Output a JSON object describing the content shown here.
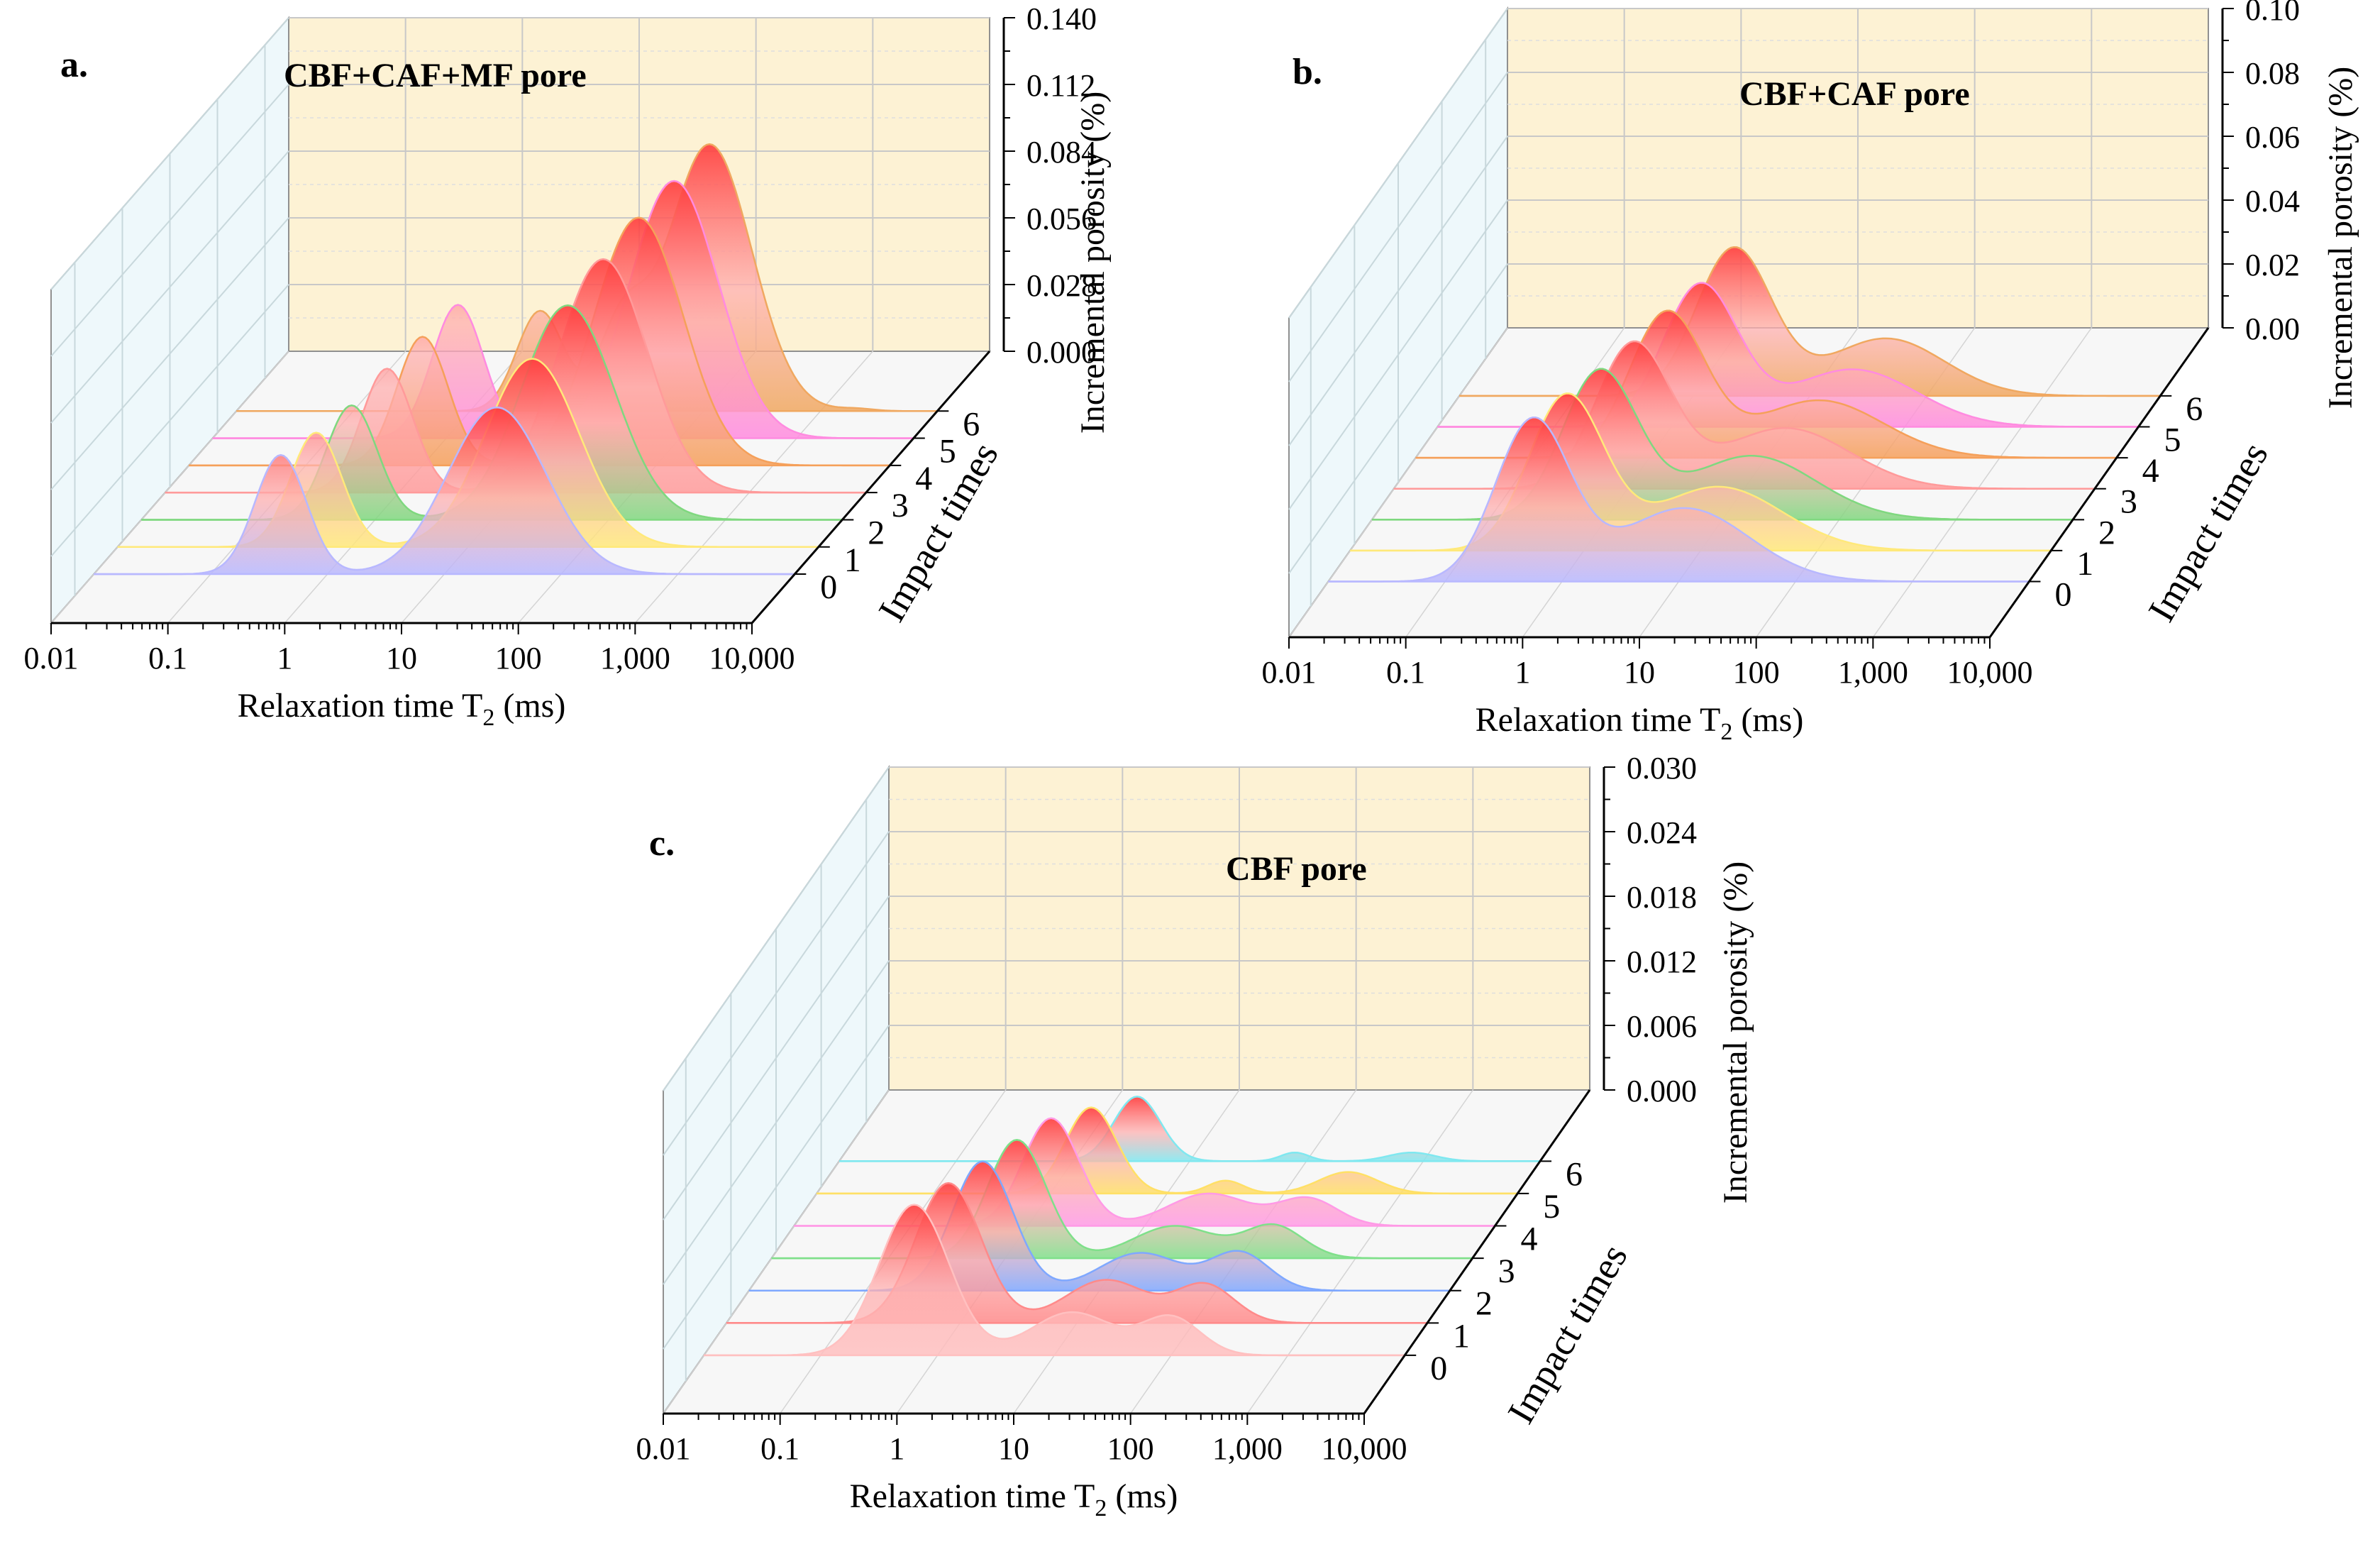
{
  "chart_data": [
    {
      "panel_label": "a.",
      "type": "area",
      "inset_title": "CBF+CAF+MF pore",
      "xlabel": "Relaxation time T",
      "xlabel_sub": "2",
      "xlabel_unit": " (ms)",
      "ylabel": "Incremental porosity (%)",
      "zlabel": "Impact times",
      "x_scale": "log",
      "xlim": [
        0.01,
        10000
      ],
      "x_ticks": [
        "0.01",
        "0.1",
        "1",
        "10",
        "100",
        "1,000",
        "10,000"
      ],
      "ylim": [
        0,
        0.14
      ],
      "y_ticks": [
        "0.000",
        "0.028",
        "0.056",
        "0.084",
        "0.112",
        "0.140"
      ],
      "z_ticks": [
        "0",
        "1",
        "2",
        "3",
        "4",
        "5",
        "6"
      ],
      "grid": true,
      "series": [
        {
          "impact": 0,
          "color": "#b8b8ff",
          "peaks": [
            {
              "log_t2": -0.4,
              "w": 0.22,
              "h": 0.05
            },
            {
              "log_t2": 1.45,
              "w": 0.42,
              "h": 0.07
            }
          ]
        },
        {
          "impact": 1,
          "color": "#ffe97a",
          "peaks": [
            {
              "log_t2": -0.3,
              "w": 0.22,
              "h": 0.048
            },
            {
              "log_t2": 1.55,
              "w": 0.4,
              "h": 0.079
            }
          ]
        },
        {
          "impact": 2,
          "color": "#7fd87f",
          "peaks": [
            {
              "log_t2": -0.2,
              "w": 0.22,
              "h": 0.048
            },
            {
              "log_t2": 1.65,
              "w": 0.4,
              "h": 0.09
            }
          ]
        },
        {
          "impact": 3,
          "color": "#ff9a9a",
          "peaks": [
            {
              "log_t2": -0.1,
              "w": 0.22,
              "h": 0.052
            },
            {
              "log_t2": 1.75,
              "w": 0.38,
              "h": 0.098
            }
          ]
        },
        {
          "impact": 4,
          "color": "#f5a05a",
          "peaks": [
            {
              "log_t2": 0.0,
              "w": 0.22,
              "h": 0.054
            },
            {
              "log_t2": 1.85,
              "w": 0.38,
              "h": 0.104
            }
          ]
        },
        {
          "impact": 5,
          "color": "#ff8be0",
          "peaks": [
            {
              "log_t2": 0.1,
              "w": 0.22,
              "h": 0.056
            },
            {
              "log_t2": 1.95,
              "w": 0.38,
              "h": 0.108
            }
          ]
        },
        {
          "impact": 6,
          "color": "#f0a860",
          "peaks": [
            {
              "log_t2": 0.6,
              "w": 0.2,
              "h": 0.042
            },
            {
              "log_t2": 1.3,
              "w": 0.2,
              "h": 0.034
            },
            {
              "log_t2": 2.05,
              "w": 0.36,
              "h": 0.112
            },
            {
              "log_t2": 3.3,
              "w": 0.15,
              "h": 0.001
            }
          ]
        }
      ]
    },
    {
      "panel_label": "b.",
      "type": "area",
      "inset_title": "CBF+CAF pore",
      "xlabel": "Relaxation time T",
      "xlabel_sub": "2",
      "xlabel_unit": " (ms)",
      "ylabel": "Incremental porosity (%)",
      "zlabel": "Impact times",
      "x_scale": "log",
      "xlim": [
        0.01,
        10000
      ],
      "x_ticks": [
        "0.01",
        "0.1",
        "1",
        "10",
        "100",
        "1,000",
        "10,000"
      ],
      "ylim": [
        0,
        0.1
      ],
      "y_ticks": [
        "0.00",
        "0.02",
        "0.04",
        "0.06",
        "0.08",
        "0.10"
      ],
      "z_ticks": [
        "0",
        "1",
        "2",
        "3",
        "4",
        "5",
        "6"
      ],
      "grid": true,
      "series": [
        {
          "impact": 0,
          "color": "#b8b8ff",
          "peaks": [
            {
              "log_t2": -0.25,
              "w": 0.32,
              "h": 0.05
            },
            {
              "log_t2": 1.05,
              "w": 0.55,
              "h": 0.023
            }
          ]
        },
        {
          "impact": 1,
          "color": "#ffe97a",
          "peaks": [
            {
              "log_t2": -0.15,
              "w": 0.32,
              "h": 0.048
            },
            {
              "log_t2": 1.15,
              "w": 0.55,
              "h": 0.02
            }
          ]
        },
        {
          "impact": 2,
          "color": "#7fd87f",
          "peaks": [
            {
              "log_t2": -0.05,
              "w": 0.32,
              "h": 0.046
            },
            {
              "log_t2": 1.25,
              "w": 0.55,
              "h": 0.02
            }
          ]
        },
        {
          "impact": 3,
          "color": "#ff9a9a",
          "peaks": [
            {
              "log_t2": 0.05,
              "w": 0.32,
              "h": 0.045
            },
            {
              "log_t2": 1.35,
              "w": 0.55,
              "h": 0.019
            }
          ]
        },
        {
          "impact": 4,
          "color": "#f5a05a",
          "peaks": [
            {
              "log_t2": 0.15,
              "w": 0.32,
              "h": 0.045
            },
            {
              "log_t2": 1.45,
              "w": 0.55,
              "h": 0.018
            }
          ]
        },
        {
          "impact": 5,
          "color": "#ff8be0",
          "peaks": [
            {
              "log_t2": 0.25,
              "w": 0.32,
              "h": 0.044
            },
            {
              "log_t2": 1.55,
              "w": 0.55,
              "h": 0.018
            }
          ]
        },
        {
          "impact": 6,
          "color": "#f0a860",
          "peaks": [
            {
              "log_t2": 0.35,
              "w": 0.32,
              "h": 0.046
            },
            {
              "log_t2": 1.65,
              "w": 0.5,
              "h": 0.018
            }
          ]
        }
      ]
    },
    {
      "panel_label": "c.",
      "type": "area",
      "inset_title": "CBF pore",
      "xlabel": "Relaxation time T",
      "xlabel_sub": "2",
      "xlabel_unit": " (ms)",
      "ylabel": "Incremental porosity (%)",
      "zlabel": "Impact times",
      "x_scale": "log",
      "xlim": [
        0.01,
        10000
      ],
      "x_ticks": [
        "0.01",
        "0.1",
        "1",
        "10",
        "100",
        "1,000",
        "10,000"
      ],
      "ylim": [
        0,
        0.03
      ],
      "y_ticks": [
        "0.000",
        "0.006",
        "0.012",
        "0.018",
        "0.024",
        "0.030"
      ],
      "z_ticks": [
        "0",
        "1",
        "2",
        "3",
        "4",
        "5",
        "6"
      ],
      "grid": true,
      "series": [
        {
          "impact": 0,
          "color": "#ffc0c0",
          "peaks": [
            {
              "log_t2": -0.2,
              "w": 0.3,
              "h": 0.014
            },
            {
              "log_t2": 1.15,
              "w": 0.35,
              "h": 0.004
            },
            {
              "log_t2": 2.0,
              "w": 0.25,
              "h": 0.0035
            }
          ]
        },
        {
          "impact": 1,
          "color": "#ff8a8a",
          "peaks": [
            {
              "log_t2": -0.1,
              "w": 0.28,
              "h": 0.013
            },
            {
              "log_t2": 1.25,
              "w": 0.35,
              "h": 0.004
            },
            {
              "log_t2": 2.1,
              "w": 0.25,
              "h": 0.0035
            }
          ]
        },
        {
          "impact": 2,
          "color": "#7fa8ff",
          "peaks": [
            {
              "log_t2": 0.0,
              "w": 0.26,
              "h": 0.012
            },
            {
              "log_t2": 1.35,
              "w": 0.35,
              "h": 0.0035
            },
            {
              "log_t2": 2.2,
              "w": 0.25,
              "h": 0.0035
            }
          ]
        },
        {
          "impact": 3,
          "color": "#7fe08a",
          "peaks": [
            {
              "log_t2": 0.1,
              "w": 0.25,
              "h": 0.011
            },
            {
              "log_t2": 1.45,
              "w": 0.35,
              "h": 0.003
            },
            {
              "log_t2": 2.3,
              "w": 0.25,
              "h": 0.003
            }
          ]
        },
        {
          "impact": 4,
          "color": "#ff9ae6",
          "peaks": [
            {
              "log_t2": 0.2,
              "w": 0.24,
              "h": 0.01
            },
            {
              "log_t2": 1.55,
              "w": 0.35,
              "h": 0.003
            },
            {
              "log_t2": 2.4,
              "w": 0.25,
              "h": 0.0025
            }
          ]
        },
        {
          "impact": 5,
          "color": "#ffe066",
          "peaks": [
            {
              "log_t2": 0.35,
              "w": 0.22,
              "h": 0.008
            },
            {
              "log_t2": 1.5,
              "w": 0.15,
              "h": 0.0012
            },
            {
              "log_t2": 2.55,
              "w": 0.25,
              "h": 0.002
            }
          ]
        },
        {
          "impact": 6,
          "color": "#7fe8f0",
          "peaks": [
            {
              "log_t2": 0.55,
              "w": 0.2,
              "h": 0.006
            },
            {
              "log_t2": 1.9,
              "w": 0.12,
              "h": 0.0008
            },
            {
              "log_t2": 2.9,
              "w": 0.2,
              "h": 0.0008
            }
          ]
        }
      ]
    }
  ]
}
